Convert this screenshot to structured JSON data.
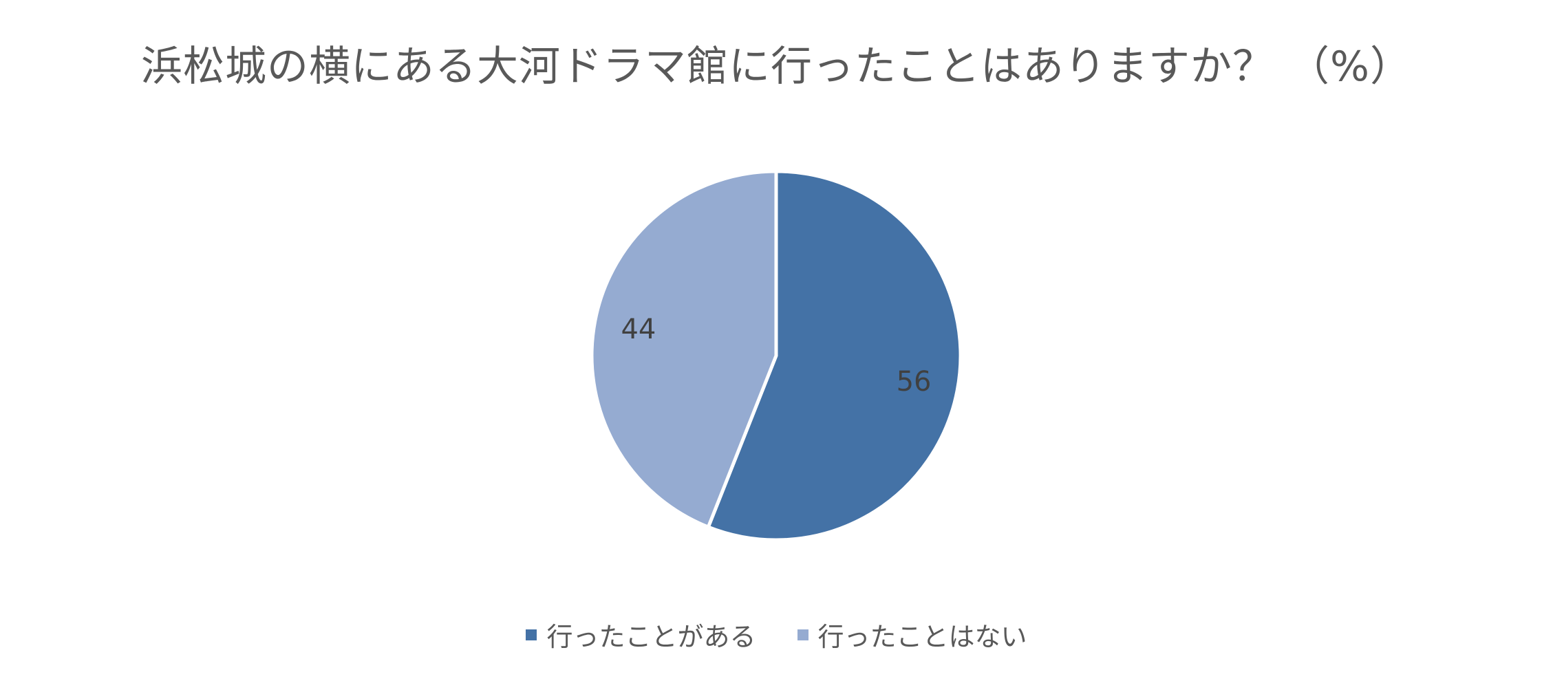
{
  "chart_data": {
    "type": "pie",
    "title": "浜松城の横にある大河ドラマ館に行ったことはありますか？ （%）",
    "categories": [
      "行ったことがある",
      "行ったことはない"
    ],
    "values": [
      56,
      44
    ],
    "data_labels": [
      "56",
      "44"
    ],
    "colors": [
      "#4472a6",
      "#95abd1"
    ],
    "legend_position": "bottom"
  }
}
